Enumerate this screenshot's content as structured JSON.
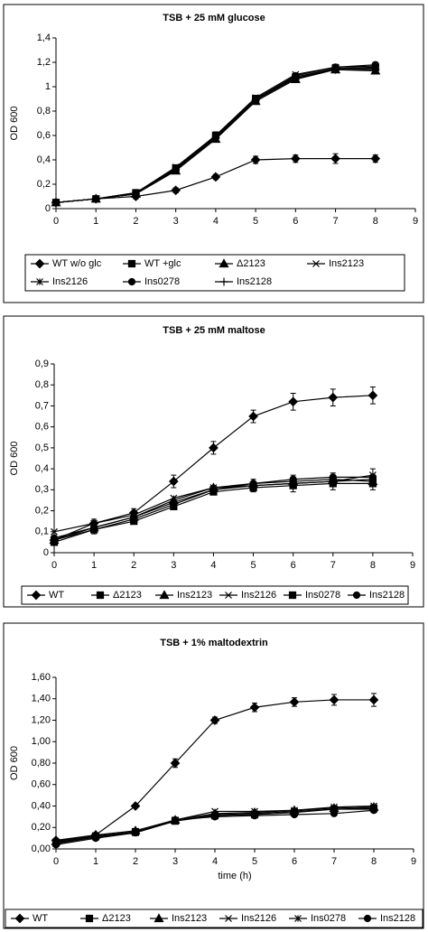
{
  "chart_data": [
    {
      "type": "line",
      "title": "TSB + 25 mM glucose",
      "y_label": "OD 600",
      "x": [
        0,
        1,
        2,
        3,
        4,
        5,
        6,
        7,
        8
      ],
      "xlim": [
        0,
        9
      ],
      "xticks": [
        0,
        1,
        2,
        3,
        4,
        5,
        6,
        7,
        8,
        9
      ],
      "ylim": [
        0,
        1.4
      ],
      "yticks": [
        0,
        {
          "value": 0.2,
          "label": "0,2"
        },
        {
          "value": 0.4,
          "label": "0,4"
        },
        {
          "value": 0.6,
          "label": "0,6"
        },
        {
          "value": 0.8,
          "label": "0,8"
        },
        1,
        {
          "value": 1.2,
          "label": "1,2"
        },
        {
          "value": 1.4,
          "label": "1,4"
        }
      ],
      "series": [
        {
          "name": "WT w/o glc",
          "color": "#000000",
          "marker": "diamond",
          "values": [
            0.05,
            0.08,
            0.1,
            0.15,
            0.26,
            0.4,
            0.41,
            0.41,
            0.41
          ],
          "errors": [
            0,
            0,
            0.02,
            0.02,
            0.02,
            0.03,
            0.03,
            0.04,
            0.03
          ]
        },
        {
          "name": "WT +glc",
          "color": "#000000",
          "marker": "square",
          "values": [
            0.05,
            0.08,
            0.13,
            0.33,
            0.6,
            0.9,
            1.08,
            1.15,
            1.16
          ],
          "errors": [
            0,
            0,
            0.02,
            0.03,
            0.03,
            0.03,
            0.03,
            0.03,
            0.04
          ]
        },
        {
          "name": "Δ2123",
          "color": "#000000",
          "marker": "triangle",
          "values": [
            0.05,
            0.08,
            0.12,
            0.31,
            0.57,
            0.88,
            1.06,
            1.14,
            1.13
          ]
        },
        {
          "name": "Ins2123",
          "color": "#000000",
          "marker": "x",
          "values": [
            0.05,
            0.08,
            0.13,
            0.34,
            0.6,
            0.91,
            1.1,
            1.16,
            1.17
          ]
        },
        {
          "name": "Ins2126",
          "color": "#000000",
          "marker": "asterisk",
          "values": [
            0.05,
            0.08,
            0.12,
            0.32,
            0.58,
            0.89,
            1.07,
            1.15,
            1.15
          ]
        },
        {
          "name": "Ins0278",
          "color": "#000000",
          "marker": "circle",
          "values": [
            0.05,
            0.08,
            0.13,
            0.33,
            0.59,
            0.9,
            1.09,
            1.16,
            1.18
          ]
        },
        {
          "name": "Ins2128",
          "color": "#000000",
          "marker": "plus",
          "values": [
            0.05,
            0.08,
            0.12,
            0.32,
            0.58,
            0.89,
            1.07,
            1.14,
            1.14
          ]
        }
      ]
    },
    {
      "type": "line",
      "title": "TSB + 25 mM maltose",
      "y_label": "OD 600",
      "x": [
        0,
        1,
        2,
        3,
        4,
        5,
        6,
        7,
        8
      ],
      "xlim": [
        0,
        9
      ],
      "xticks": [
        0,
        1,
        2,
        3,
        4,
        5,
        6,
        7,
        8,
        9
      ],
      "ylim": [
        0,
        0.9
      ],
      "yticks": [
        0,
        {
          "value": 0.1,
          "label": "0,1"
        },
        {
          "value": 0.2,
          "label": "0,2"
        },
        {
          "value": 0.3,
          "label": "0,3"
        },
        {
          "value": 0.4,
          "label": "0,4"
        },
        {
          "value": 0.5,
          "label": "0,5"
        },
        {
          "value": 0.6,
          "label": "0,6"
        },
        {
          "value": 0.7,
          "label": "0,7"
        },
        {
          "value": 0.8,
          "label": "0,8"
        },
        {
          "value": 0.9,
          "label": "0,9"
        }
      ],
      "series": [
        {
          "name": "WT",
          "color": "#000000",
          "marker": "diamond",
          "values": [
            0.06,
            0.14,
            0.19,
            0.34,
            0.5,
            0.65,
            0.72,
            0.74,
            0.75
          ],
          "errors": [
            0.01,
            0.02,
            0.02,
            0.03,
            0.03,
            0.03,
            0.04,
            0.04,
            0.04
          ]
        },
        {
          "name": "Δ2123",
          "color": "#000000",
          "marker": "square",
          "values": [
            0.05,
            0.11,
            0.16,
            0.23,
            0.3,
            0.32,
            0.33,
            0.34,
            0.35
          ],
          "errors": [
            0.01,
            0.02,
            0.02,
            0.02,
            0.02,
            0.03,
            0.04,
            0.04,
            0.05
          ]
        },
        {
          "name": "Ins2123",
          "color": "#000000",
          "marker": "triangle",
          "values": [
            0.06,
            0.12,
            0.17,
            0.25,
            0.31,
            0.33,
            0.34,
            0.35,
            0.34
          ]
        },
        {
          "name": "Ins2126",
          "color": "#000000",
          "marker": "x",
          "values": [
            0.1,
            0.14,
            0.18,
            0.26,
            0.31,
            0.32,
            0.33,
            0.34,
            0.37
          ]
        },
        {
          "name": "Ins0278",
          "color": "#000000",
          "marker": "square",
          "values": [
            0.06,
            0.11,
            0.15,
            0.22,
            0.29,
            0.31,
            0.32,
            0.33,
            0.33
          ]
        },
        {
          "name": "Ins2128",
          "color": "#000000",
          "marker": "circle",
          "values": [
            0.07,
            0.12,
            0.17,
            0.24,
            0.3,
            0.33,
            0.35,
            0.36,
            0.36
          ]
        }
      ]
    },
    {
      "type": "line",
      "title": "TSB + 1% maltodextrin",
      "y_label": "OD 600",
      "x_label": "time (h)",
      "x": [
        0,
        1,
        2,
        3,
        4,
        5,
        6,
        7,
        8
      ],
      "xlim": [
        0,
        9
      ],
      "xticks": [
        0,
        1,
        2,
        3,
        4,
        5,
        6,
        7,
        8,
        9
      ],
      "ylim": [
        0,
        1.6
      ],
      "yticks": [
        {
          "value": 0,
          "label": "0,00"
        },
        {
          "value": 0.2,
          "label": "0,20"
        },
        {
          "value": 0.4,
          "label": "0,40"
        },
        {
          "value": 0.6,
          "label": "0,60"
        },
        {
          "value": 0.8,
          "label": "0,80"
        },
        {
          "value": 1,
          "label": "1,00"
        },
        {
          "value": 1.2,
          "label": "1,20"
        },
        {
          "value": 1.4,
          "label": "1,40"
        },
        {
          "value": 1.6,
          "label": "1,60"
        }
      ],
      "series": [
        {
          "name": "WT",
          "color": "#000000",
          "marker": "diamond",
          "values": [
            0.08,
            0.13,
            0.4,
            0.8,
            1.2,
            1.32,
            1.37,
            1.39,
            1.39
          ],
          "errors": [
            0.01,
            0.01,
            0.01,
            0.04,
            0.03,
            0.04,
            0.04,
            0.05,
            0.06
          ]
        },
        {
          "name": "Δ2123",
          "color": "#000000",
          "marker": "square",
          "values": [
            0.06,
            0.12,
            0.16,
            0.26,
            0.31,
            0.32,
            0.34,
            0.37,
            0.38
          ]
        },
        {
          "name": "Ins2123",
          "color": "#000000",
          "marker": "triangle",
          "values": [
            0.07,
            0.13,
            0.17,
            0.27,
            0.33,
            0.34,
            0.36,
            0.38,
            0.39
          ]
        },
        {
          "name": "Ins2126",
          "color": "#000000",
          "marker": "x",
          "values": [
            0.05,
            0.11,
            0.16,
            0.27,
            0.35,
            0.35,
            0.36,
            0.39,
            0.4
          ]
        },
        {
          "name": "Ins0278",
          "color": "#000000",
          "marker": "asterisk",
          "values": [
            0.06,
            0.12,
            0.15,
            0.26,
            0.32,
            0.33,
            0.35,
            0.37,
            0.37
          ]
        },
        {
          "name": "Ins2128",
          "color": "#000000",
          "marker": "circle",
          "values": [
            0.04,
            0.1,
            0.15,
            0.27,
            0.3,
            0.31,
            0.32,
            0.33,
            0.36
          ]
        }
      ]
    }
  ]
}
